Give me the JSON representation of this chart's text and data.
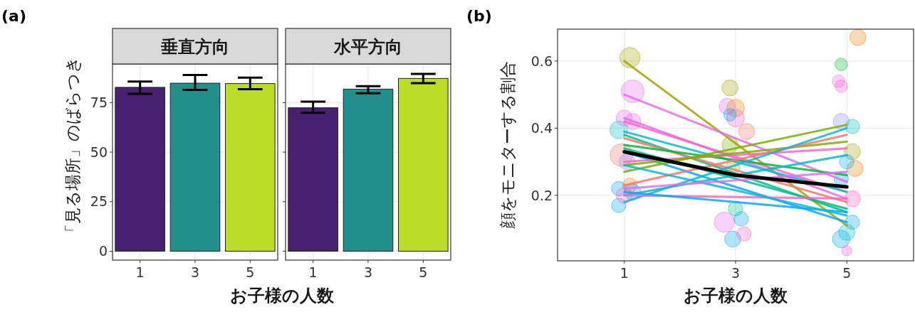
{
  "chart_data": [
    {
      "type": "bar",
      "title": "垂直方向",
      "annotations": [
        "(a)"
      ],
      "xlabel": "お子様の人数",
      "ylabel": "「見る場所」のばらつき",
      "categories": [
        "1",
        "3",
        "5"
      ],
      "values": [
        82.7,
        84.8,
        84.6
      ],
      "errors": [
        [
          79.4,
          85.6
        ],
        [
          81.4,
          88.9
        ],
        [
          81.8,
          87.6
        ]
      ],
      "colors": [
        "#482173",
        "#21908d",
        "#bade28"
      ],
      "ylim": [
        -4.5,
        94.5
      ],
      "yticks": [
        0,
        25,
        50,
        75
      ],
      "grid": true
    },
    {
      "type": "bar",
      "title": "水平方向",
      "categories": [
        "1",
        "3",
        "5"
      ],
      "values": [
        72.4,
        81.8,
        87.2
      ],
      "errors": [
        [
          69.8,
          75.5
        ],
        [
          79.7,
          83.3
        ],
        [
          84.8,
          89.5
        ]
      ],
      "colors": [
        "#482173",
        "#21908d",
        "#bade28"
      ],
      "ylim": [
        -4.5,
        94.5
      ],
      "yticks": [
        0,
        25,
        50,
        75
      ],
      "grid": true,
      "tick_labels": "x"
    },
    {
      "type": "line",
      "annotations": [
        "(b)"
      ],
      "xlabel": "お子様の人数",
      "ylabel": "顔をモニターする割合",
      "xlim": [
        -0.2,
        6.2
      ],
      "xticks": [
        1,
        3,
        5
      ],
      "ylim": [
        0.005,
        0.695
      ],
      "yticks": [
        0.2,
        0.4,
        0.6
      ],
      "grid": true,
      "series": [
        {
          "type": "bubble",
          "x": [
            1.1,
            1.15,
            0.95,
            0.9,
            1.0,
            1.15,
            0.9,
            0.9,
            1.0,
            1.05,
            1.1,
            1.15,
            2.9,
            2.85,
            3.0,
            3.0,
            2.9,
            3.2,
            2.8,
            2.95,
            3.15,
            3.1,
            2.9,
            2.95,
            3.0,
            5.2,
            4.9,
            4.85,
            4.9,
            4.9,
            5.1,
            5.1,
            5.15,
            5.0,
            5.1,
            4.9,
            5.0,
            5.0,
            5.1,
            4.9
          ],
          "values": [
            0.61,
            0.51,
            0.32,
            0.395,
            0.43,
            0.42,
            0.22,
            0.17,
            0.2,
            0.3,
            0.23,
            0.21,
            0.52,
            0.465,
            0.46,
            0.43,
            0.44,
            0.39,
            0.12,
            0.07,
            0.085,
            0.13,
            0.35,
            0.28,
            0.16,
            0.67,
            0.59,
            0.54,
            0.525,
            0.42,
            0.405,
            0.33,
            0.28,
            0.3,
            0.19,
            0.07,
            0.09,
            0.035,
            0.12,
            0.25
          ],
          "sizes": [
            0.8,
            1,
            1,
            0.6,
            0.5,
            0.5,
            0.4,
            0.4,
            0.5,
            0.5,
            0.4,
            0.5,
            0.5,
            0.5,
            0.6,
            0.6,
            0.3,
            0.5,
            0.8,
            0.5,
            0.4,
            0.4,
            0.5,
            0.4,
            0.4,
            0.5,
            0.3,
            0.3,
            0.3,
            0.5,
            0.4,
            0.5,
            0.5,
            0.4,
            0.5,
            0.6,
            0.5,
            0.2,
            0.4,
            0.4
          ],
          "colors": [
            "#a3a500",
            "#e76bf3",
            "#f8766d",
            "#00bfc4",
            "#e76bf3",
            "#e76bf3",
            "#00a9ff",
            "#00a9ff",
            "#ff61c3",
            "#9590ff",
            "#e58700",
            "#00a9ff",
            "#a3a500",
            "#e76bf3",
            "#e58700",
            "#ff61c3",
            "#00a9ff",
            "#f8766d",
            "#e76bf3",
            "#00a9ff",
            "#ff61c3",
            "#00a9ff",
            "#7cae00",
            "#a3a500",
            "#00c08b",
            "#e58700",
            "#00ba38",
            "#e76bf3",
            "#ff61c3",
            "#9590ff",
            "#00bfc4",
            "#a3a500",
            "#e58700",
            "#00a9ff",
            "#ff61c3",
            "#00a9ff",
            "#00bfc4",
            "#ff61c3",
            "#00a9ff",
            "#00a9ff"
          ]
        },
        {
          "type": "line",
          "x": [
            1,
            5
          ],
          "values": [
            0.6,
            0.11
          ],
          "color": "#a3a500"
        },
        {
          "type": "line",
          "x": [
            1,
            5
          ],
          "values": [
            0.5,
            0.24
          ],
          "color": "#e76bf3"
        },
        {
          "type": "line",
          "x": [
            1,
            5
          ],
          "values": [
            0.43,
            0.19
          ],
          "color": "#e76bf3"
        },
        {
          "type": "line",
          "x": [
            1,
            5
          ],
          "values": [
            0.42,
            0.21
          ],
          "color": "#ff61c3"
        },
        {
          "type": "line",
          "x": [
            1,
            5
          ],
          "values": [
            0.39,
            0.21
          ],
          "color": "#00bfc4"
        },
        {
          "type": "line",
          "x": [
            1,
            5
          ],
          "values": [
            0.38,
            0.15
          ],
          "color": "#00c08b"
        },
        {
          "type": "line",
          "x": [
            1,
            5
          ],
          "values": [
            0.37,
            0.18
          ],
          "color": "#f8766d"
        },
        {
          "type": "line",
          "x": [
            1,
            5
          ],
          "values": [
            0.35,
            0.26
          ],
          "color": "#00ba38"
        },
        {
          "type": "line",
          "x": [
            1,
            5
          ],
          "values": [
            0.34,
            0.16
          ],
          "color": "#00c08b"
        },
        {
          "type": "line",
          "x": [
            1,
            5
          ],
          "values": [
            0.33,
            0.12
          ],
          "color": "#00a9ff"
        },
        {
          "type": "line",
          "x": [
            1,
            5
          ],
          "values": [
            0.3,
            0.34
          ],
          "color": "#ff61c3"
        },
        {
          "type": "line",
          "x": [
            1,
            5
          ],
          "values": [
            0.29,
            0.36
          ],
          "color": "#7cae00"
        },
        {
          "type": "line",
          "x": [
            1,
            5
          ],
          "values": [
            0.27,
            0.41
          ],
          "color": "#7cae00"
        },
        {
          "type": "line",
          "x": [
            1,
            5
          ],
          "values": [
            0.23,
            0.38
          ],
          "color": "#f8766d"
        },
        {
          "type": "line",
          "x": [
            1,
            5
          ],
          "values": [
            0.2,
            0.32
          ],
          "color": "#00bfc4"
        },
        {
          "type": "line",
          "x": [
            1,
            5
          ],
          "values": [
            0.18,
            0.4
          ],
          "color": "#00bcd8"
        },
        {
          "type": "line",
          "x": [
            1,
            5
          ],
          "values": [
            0.2,
            0.19
          ],
          "color": "#ff61c3"
        },
        {
          "type": "line",
          "x": [
            1,
            5
          ],
          "values": [
            0.21,
            0.15
          ],
          "color": "#00a9ff"
        },
        {
          "type": "line",
          "x": [
            1,
            5
          ],
          "values": [
            0.29,
            0.14
          ],
          "color": "#00bcd8"
        },
        {
          "type": "line",
          "x": [
            1,
            5
          ],
          "values": [
            0.22,
            0.27
          ],
          "color": "#e76bf3"
        },
        {
          "type": "line",
          "x": [
            1,
            3,
            5
          ],
          "values": [
            0.33,
            0.26,
            0.225
          ],
          "color": "#000000"
        }
      ]
    }
  ]
}
